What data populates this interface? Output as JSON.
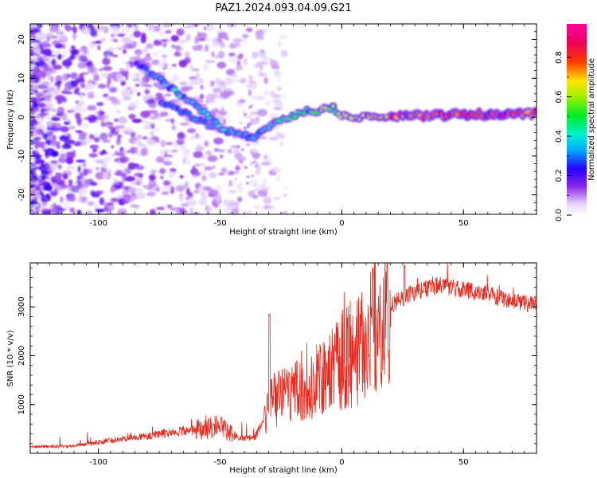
{
  "title": "PAZ1.2024.093.04.09.G21",
  "chart_data": [
    {
      "type": "heatmap",
      "title": "",
      "xlabel": "Height of straight line (km)",
      "ylabel": "Frequency (Hz)",
      "xlim": [
        -128,
        80
      ],
      "ylim": [
        -25,
        24
      ],
      "xticks": [
        -100,
        -50,
        0,
        50
      ],
      "xtick_labels": [
        "-100",
        "-50",
        "0",
        "50"
      ],
      "yticks": [
        -20,
        -10,
        0,
        10,
        20
      ],
      "ytick_labels": [
        "-20",
        "-10",
        "0",
        "10",
        "20"
      ],
      "colorscale": "gist_ncar-like (white-purple-blue-cyan-green-yellow-red-pink)",
      "colorbar": {
        "label": "Normalized spectral amplitude",
        "range": [
          0.0,
          0.97
        ],
        "ticks": [
          0.0,
          0.2,
          0.4,
          0.6,
          0.8
        ],
        "tick_labels": [
          "0.0",
          "0.2",
          "0.4",
          "0.6",
          "0.8"
        ]
      },
      "ridge": [
        {
          "x": -84,
          "f": 14,
          "a": 0.25
        },
        {
          "x": -78,
          "f": 11,
          "a": 0.3
        },
        {
          "x": -72,
          "f": 8.5,
          "a": 0.32
        },
        {
          "x": -66,
          "f": 5.5,
          "a": 0.35
        },
        {
          "x": -60,
          "f": 3,
          "a": 0.35
        },
        {
          "x": -54,
          "f": -0.5,
          "a": 0.38
        },
        {
          "x": -48,
          "f": -3.5,
          "a": 0.38
        },
        {
          "x": -42,
          "f": -4.5,
          "a": 0.36
        },
        {
          "x": -36,
          "f": -5.5,
          "a": 0.35
        },
        {
          "x": -32,
          "f": -3,
          "a": 0.38
        },
        {
          "x": -28,
          "f": -1.5,
          "a": 0.45
        },
        {
          "x": -22,
          "f": -0.5,
          "a": 0.5
        },
        {
          "x": -16,
          "f": 1.5,
          "a": 0.55
        },
        {
          "x": -10,
          "f": 1.5,
          "a": 0.62
        },
        {
          "x": -4,
          "f": 2.5,
          "a": 0.55
        },
        {
          "x": 0,
          "f": 0.5,
          "a": 0.6
        },
        {
          "x": 5,
          "f": 0,
          "a": 0.7
        },
        {
          "x": 12,
          "f": 0.3,
          "a": 0.72
        },
        {
          "x": 20,
          "f": 0,
          "a": 0.75
        },
        {
          "x": 30,
          "f": 0.3,
          "a": 0.8
        },
        {
          "x": 40,
          "f": 0.5,
          "a": 0.82
        },
        {
          "x": 50,
          "f": 0.7,
          "a": 0.85
        },
        {
          "x": 60,
          "f": 0.7,
          "a": 0.9
        },
        {
          "x": 70,
          "f": 0.8,
          "a": 0.85
        },
        {
          "x": 80,
          "f": 1,
          "a": 0.8
        }
      ],
      "secondary_ridge": [
        {
          "x": -74,
          "f": 3.5,
          "a": 0.3
        },
        {
          "x": -68,
          "f": 2,
          "a": 0.32
        },
        {
          "x": -62,
          "f": 0,
          "a": 0.32
        },
        {
          "x": -56,
          "f": -1.5,
          "a": 0.32
        },
        {
          "x": -50,
          "f": -3,
          "a": 0.32
        }
      ]
    },
    {
      "type": "line",
      "title": "",
      "xlabel": "Height of straight line (km)",
      "ylabel": "SNR (10 * v/v)",
      "xlim": [
        -128,
        80
      ],
      "ylim": [
        0,
        3900
      ],
      "xticks": [
        -100,
        -50,
        0,
        50
      ],
      "xtick_labels": [
        "-100",
        "-50",
        "0",
        "50"
      ],
      "yticks": [
        1000,
        2000,
        3000
      ],
      "ytick_labels": [
        "1000",
        "2000",
        "3000"
      ],
      "series": [
        {
          "color": "#e8281c",
          "envelope": [
            {
              "x": -128,
              "y": 130
            },
            {
              "x": -110,
              "y": 150
            },
            {
              "x": -100,
              "y": 230
            },
            {
              "x": -90,
              "y": 300
            },
            {
              "x": -80,
              "y": 350
            },
            {
              "x": -70,
              "y": 430
            },
            {
              "x": -60,
              "y": 480
            },
            {
              "x": -50,
              "y": 560
            },
            {
              "x": -43,
              "y": 330
            },
            {
              "x": -36,
              "y": 300
            },
            {
              "x": -32,
              "y": 700
            },
            {
              "x": -28,
              "y": 1100
            },
            {
              "x": -20,
              "y": 1300
            },
            {
              "x": -12,
              "y": 1450
            },
            {
              "x": -5,
              "y": 1650
            },
            {
              "x": 0,
              "y": 1900
            },
            {
              "x": 8,
              "y": 2200
            },
            {
              "x": 15,
              "y": 2750
            },
            {
              "x": 22,
              "y": 3100
            },
            {
              "x": 30,
              "y": 3300
            },
            {
              "x": 40,
              "y": 3450
            },
            {
              "x": 50,
              "y": 3350
            },
            {
              "x": 60,
              "y": 3250
            },
            {
              "x": 70,
              "y": 3100
            },
            {
              "x": 80,
              "y": 3050
            }
          ]
        }
      ]
    }
  ]
}
